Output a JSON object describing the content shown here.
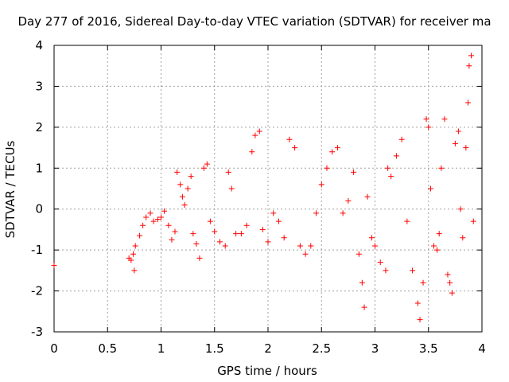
{
  "chart_data": {
    "type": "scatter",
    "title": "Day 277 of 2016, Sidereal Day-to-day VTEC variation (SDTVAR) for receiver ma",
    "xlabel": "GPS time / hours",
    "ylabel": "SDTVAR / TECUs",
    "xlim": [
      0,
      4
    ],
    "ylim": [
      -3,
      4
    ],
    "xticks": [
      0,
      0.5,
      1,
      1.5,
      2,
      2.5,
      3,
      3.5,
      4
    ],
    "yticks": [
      -3,
      -2,
      -1,
      0,
      1,
      2,
      3,
      4
    ],
    "xtick_labels": [
      "0",
      "0.5",
      "1",
      "1.5",
      "2",
      "2.5",
      "3",
      "3.5",
      "4"
    ],
    "ytick_labels": [
      "-3",
      "-2",
      "-1",
      "0",
      "1",
      "2",
      "3",
      "4"
    ],
    "grid": true,
    "marker": "+",
    "color": "#ff0000",
    "series": [
      {
        "name": "SDTVAR",
        "points": [
          [
            0.0,
            -1.38
          ],
          [
            0.7,
            -1.2
          ],
          [
            0.72,
            -1.25
          ],
          [
            0.74,
            -1.1
          ],
          [
            0.75,
            -1.5
          ],
          [
            0.76,
            -0.9
          ],
          [
            0.8,
            -0.65
          ],
          [
            0.83,
            -0.4
          ],
          [
            0.86,
            -0.2
          ],
          [
            0.9,
            -0.1
          ],
          [
            0.93,
            -0.3
          ],
          [
            0.97,
            -0.25
          ],
          [
            1.0,
            -0.2
          ],
          [
            1.03,
            -0.05
          ],
          [
            1.07,
            -0.4
          ],
          [
            1.1,
            -0.75
          ],
          [
            1.13,
            -0.55
          ],
          [
            1.15,
            0.9
          ],
          [
            1.18,
            0.6
          ],
          [
            1.2,
            0.3
          ],
          [
            1.22,
            0.1
          ],
          [
            1.25,
            0.5
          ],
          [
            1.28,
            0.8
          ],
          [
            1.3,
            -0.6
          ],
          [
            1.33,
            -0.85
          ],
          [
            1.36,
            -1.2
          ],
          [
            1.4,
            1.0
          ],
          [
            1.43,
            1.1
          ],
          [
            1.46,
            -0.3
          ],
          [
            1.5,
            -0.55
          ],
          [
            1.55,
            -0.8
          ],
          [
            1.6,
            -0.9
          ],
          [
            1.63,
            0.9
          ],
          [
            1.66,
            0.5
          ],
          [
            1.7,
            -0.6
          ],
          [
            1.75,
            -0.6
          ],
          [
            1.8,
            -0.4
          ],
          [
            1.85,
            1.4
          ],
          [
            1.88,
            1.8
          ],
          [
            1.92,
            1.9
          ],
          [
            1.95,
            -0.5
          ],
          [
            2.0,
            -0.8
          ],
          [
            2.05,
            -0.1
          ],
          [
            2.1,
            -0.3
          ],
          [
            2.15,
            -0.7
          ],
          [
            2.2,
            1.7
          ],
          [
            2.25,
            1.5
          ],
          [
            2.3,
            -0.9
          ],
          [
            2.35,
            -1.1
          ],
          [
            2.4,
            -0.9
          ],
          [
            2.45,
            -0.1
          ],
          [
            2.5,
            0.6
          ],
          [
            2.55,
            1.0
          ],
          [
            2.6,
            1.4
          ],
          [
            2.65,
            1.5
          ],
          [
            2.7,
            -0.1
          ],
          [
            2.75,
            0.2
          ],
          [
            2.8,
            0.9
          ],
          [
            2.85,
            -1.1
          ],
          [
            2.88,
            -1.8
          ],
          [
            2.9,
            -2.4
          ],
          [
            2.93,
            0.3
          ],
          [
            2.97,
            -0.7
          ],
          [
            3.0,
            -0.9
          ],
          [
            3.05,
            -1.3
          ],
          [
            3.1,
            -1.5
          ],
          [
            3.12,
            1.0
          ],
          [
            3.15,
            0.8
          ],
          [
            3.2,
            1.3
          ],
          [
            3.25,
            1.7
          ],
          [
            3.3,
            -0.3
          ],
          [
            3.35,
            -1.5
          ],
          [
            3.4,
            -2.3
          ],
          [
            3.42,
            -2.7
          ],
          [
            3.45,
            -1.8
          ],
          [
            3.48,
            2.2
          ],
          [
            3.5,
            2.0
          ],
          [
            3.52,
            0.5
          ],
          [
            3.55,
            -0.9
          ],
          [
            3.58,
            -1.0
          ],
          [
            3.6,
            -0.6
          ],
          [
            3.62,
            1.0
          ],
          [
            3.65,
            2.2
          ],
          [
            3.68,
            -1.6
          ],
          [
            3.7,
            -1.8
          ],
          [
            3.72,
            -2.05
          ],
          [
            3.75,
            1.6
          ],
          [
            3.78,
            1.9
          ],
          [
            3.8,
            0.0
          ],
          [
            3.82,
            -0.7
          ],
          [
            3.85,
            1.5
          ],
          [
            3.87,
            2.6
          ],
          [
            3.88,
            3.5
          ],
          [
            3.9,
            3.75
          ],
          [
            3.92,
            -0.3
          ]
        ]
      }
    ]
  }
}
